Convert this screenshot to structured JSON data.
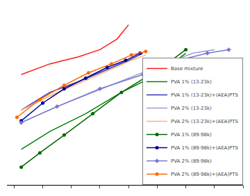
{
  "chart_data": {
    "type": "line",
    "xlim": [
      -0.05,
      1.6
    ],
    "ylim": [
      0.0,
      1.0
    ],
    "xticks": [
      0,
      0.2,
      0.4,
      0.6,
      0.8,
      1.0,
      1.2,
      1.4,
      1.6
    ],
    "tick_labels": false,
    "grid": false,
    "legend": "lower right",
    "series": [
      {
        "name": "Base mixture",
        "color": "#ff1a1a",
        "x": [
          0.05,
          0.25,
          0.45,
          0.6,
          0.72,
          0.8
        ],
        "values": [
          0.62,
          0.68,
          0.72,
          0.76,
          0.82,
          0.9
        ]
      },
      {
        "name": "PVA 1% (13-23k)",
        "color": "#008000",
        "x": [
          0.05,
          0.25,
          0.5,
          0.75,
          1.0,
          1.1,
          1.2
        ],
        "values": [
          0.2,
          0.3,
          0.4,
          0.52,
          0.62,
          0.68,
          0.74
        ]
      },
      {
        "name": "PVA 1% (13-23k)+(AEA)PTS",
        "color": "#3333bb",
        "x": [
          0.05,
          0.25,
          0.45,
          0.65,
          0.8,
          0.9
        ],
        "values": [
          0.42,
          0.52,
          0.58,
          0.65,
          0.7,
          0.74
        ]
      },
      {
        "name": "PVA 2% (13-23k)",
        "color": "#9999dd",
        "x": [
          0.05,
          0.3,
          0.55,
          0.8,
          1.05,
          1.25,
          1.4
        ],
        "values": [
          0.35,
          0.44,
          0.52,
          0.6,
          0.68,
          0.74,
          0.76
        ]
      },
      {
        "name": "PVA 2% (13-23k)+(AEA)PTS",
        "color": "#ffb07a",
        "x": [
          0.05,
          0.25,
          0.48,
          0.68,
          0.82,
          0.92
        ],
        "values": [
          0.42,
          0.5,
          0.58,
          0.65,
          0.7,
          0.73
        ]
      },
      {
        "name": "PVA 1% (89-98k)",
        "color": "#006600",
        "marker": "circle",
        "x": [
          0.05,
          0.18,
          0.35,
          0.55,
          0.75,
          0.95,
          1.1,
          1.2
        ],
        "values": [
          0.1,
          0.18,
          0.28,
          0.4,
          0.52,
          0.62,
          0.7,
          0.76
        ]
      },
      {
        "name": "PVA 1% (89-98k)+(AEA)PTS",
        "color": "#000099",
        "marker": "circle",
        "x": [
          0.05,
          0.2,
          0.35,
          0.5,
          0.65,
          0.78,
          0.88
        ],
        "values": [
          0.36,
          0.46,
          0.54,
          0.6,
          0.66,
          0.7,
          0.74
        ]
      },
      {
        "name": "PVA 2% (89-98k)",
        "color": "#7777cc",
        "marker": "diamond",
        "x": [
          0.05,
          0.3,
          0.6,
          0.9,
          1.15,
          1.35,
          1.5
        ],
        "values": [
          0.35,
          0.44,
          0.54,
          0.62,
          0.7,
          0.74,
          0.76
        ]
      },
      {
        "name": "PVA 2% (89-98k)+(AEA)PTS",
        "color": "#ff6600",
        "marker": "circle",
        "x": [
          0.02,
          0.18,
          0.35,
          0.52,
          0.68,
          0.82,
          0.92
        ],
        "values": [
          0.38,
          0.48,
          0.56,
          0.63,
          0.68,
          0.73,
          0.75
        ]
      }
    ]
  }
}
